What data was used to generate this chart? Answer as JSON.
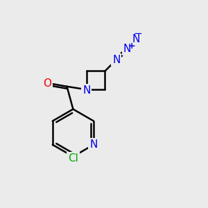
{
  "bg_color": "#ebebeb",
  "bond_color": "#000000",
  "bond_width": 1.8,
  "atom_colors": {
    "N": "#0000ee",
    "O": "#ee0000",
    "Cl": "#00aa00",
    "C": "#000000"
  },
  "font_size": 11,
  "font_size_charge": 9
}
